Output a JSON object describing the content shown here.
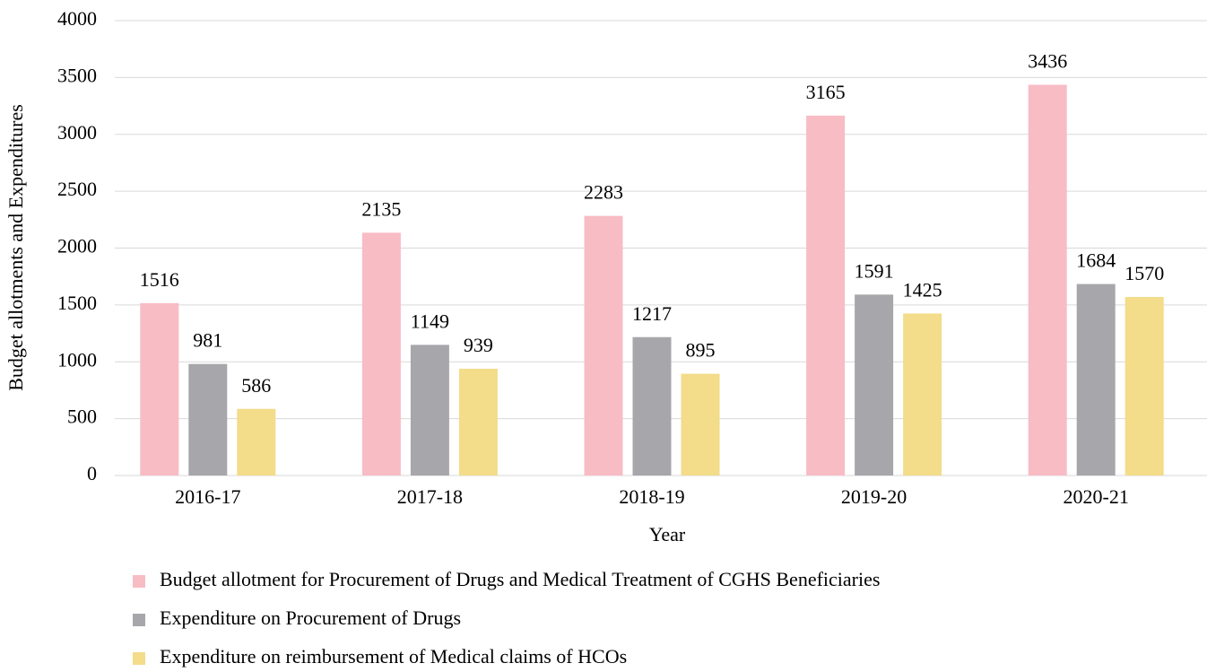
{
  "chart_data": {
    "type": "bar",
    "x_label": "Year",
    "y_label": "Budget allotments and Expenditures",
    "categories": [
      "2016-17",
      "2017-18",
      "2018-19",
      "2019-20",
      "2020-21"
    ],
    "series": [
      {
        "name": "Budget allotment for Procurement of Drugs and Medical Treatment of CGHS Beneficiaries",
        "color": "#f8bcc4",
        "values": [
          1516,
          2135,
          2283,
          3165,
          3436
        ]
      },
      {
        "name": "Expenditure on Procurement of Drugs",
        "color": "#a7a7ab",
        "values": [
          981,
          1149,
          1217,
          1591,
          1684
        ]
      },
      {
        "name": "Expenditure on reimbursement of Medical claims of HCOs",
        "color": "#f3dc8a",
        "values": [
          586,
          939,
          895,
          1425,
          1570
        ]
      }
    ],
    "ylim": [
      0,
      4000
    ],
    "yticks": [
      0,
      500,
      1000,
      1500,
      2000,
      2500,
      3000,
      3500,
      4000
    ],
    "grid": true,
    "legend": "bottom"
  }
}
